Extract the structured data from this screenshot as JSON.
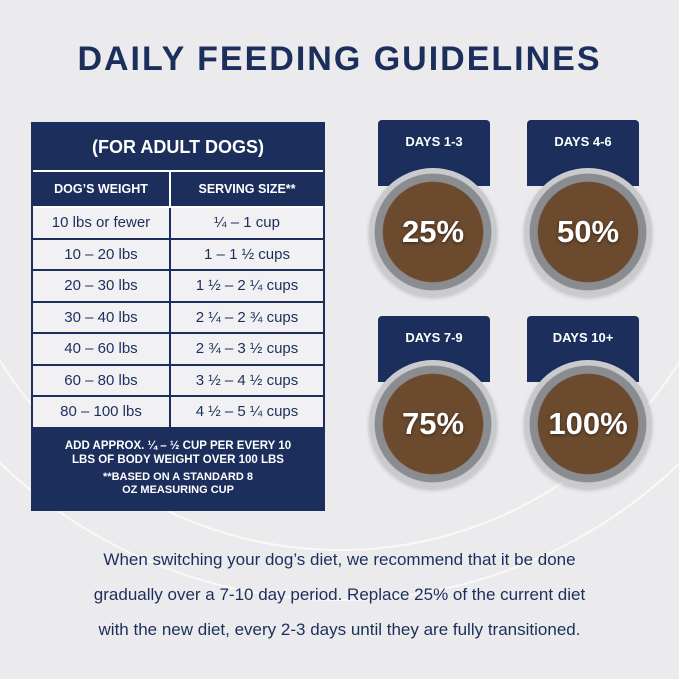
{
  "title": "DAILY FEEDING GUIDELINES",
  "table": {
    "heading": "(FOR ADULT DOGS)",
    "columns": [
      "DOG’S WEIGHT",
      "SERVING SIZE**"
    ],
    "rows": [
      [
        "10 lbs or fewer",
        "¼ – 1 cup"
      ],
      [
        "10 – 20 lbs",
        "1 – 1 ½ cups"
      ],
      [
        "20 – 30 lbs",
        "1 ½ – 2 ¼ cups"
      ],
      [
        "30 – 40 lbs",
        "2 ¼ – 2 ¾ cups"
      ],
      [
        "40 – 60 lbs",
        "2 ¾ – 3 ½ cups"
      ],
      [
        "60 – 80 lbs",
        "3 ½ – 4 ½ cups"
      ],
      [
        "80 – 100 lbs",
        "4 ½ – 5 ¼ cups"
      ]
    ],
    "footnote1": "ADD APPROX. ¼ – ½ CUP PER EVERY 10 LBS OF BODY WEIGHT OVER 100 LBS",
    "footnote2": "**BASED ON A STANDARD 8 OZ MEASURING CUP"
  },
  "transition": [
    {
      "days": "DAYS 1-3",
      "percent": "25%"
    },
    {
      "days": "DAYS 4-6",
      "percent": "50%"
    },
    {
      "days": "DAYS 7-9",
      "percent": "75%"
    },
    {
      "days": "DAYS 10+",
      "percent": "100%"
    }
  ],
  "note": [
    "When switching your dog’s diet, we recommend that it be done",
    "gradually over a 7-10 day period. Replace 25% of the current diet",
    "with the new diet, every 2-3 days until they are fully transitioned."
  ],
  "colors": {
    "navy": "#1c2f5c",
    "background": "#ebebed"
  }
}
